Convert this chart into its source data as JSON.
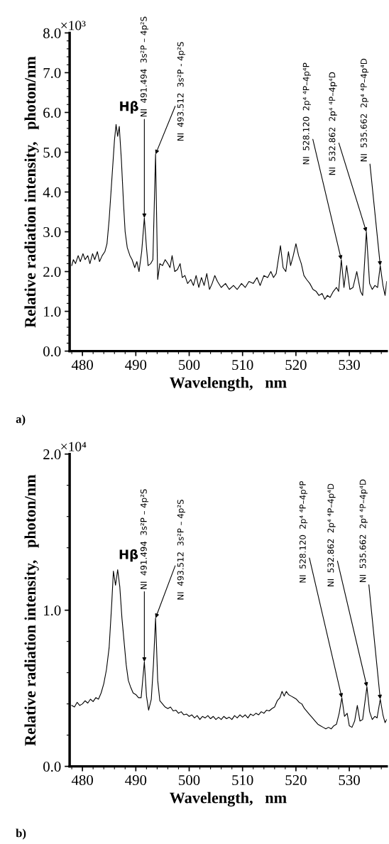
{
  "chart_data": [
    {
      "type": "line",
      "xlabel": "Wavelength,   nm",
      "ylabel": "Relative radiation intensity,   photon/nm",
      "xlim": [
        477.6,
        537
      ],
      "xticks": [
        480,
        490,
        500,
        510,
        520,
        530
      ],
      "ylim": [
        0,
        8
      ],
      "yticks": [
        {
          "value": 0,
          "label": "0.0"
        },
        {
          "value": 1,
          "label": "1.0"
        },
        {
          "value": 2,
          "label": "2.0"
        },
        {
          "value": 3,
          "label": "3.0"
        },
        {
          "value": 4,
          "label": "4.0"
        },
        {
          "value": 5,
          "label": "5.0"
        },
        {
          "value": 6,
          "label": "6.0"
        },
        {
          "value": 7,
          "label": "7.0"
        },
        {
          "value": 8,
          "label": "8.0"
        }
      ],
      "grid": false,
      "legend": false,
      "marker": "none",
      "line_style": "solid",
      "series": [
        {
          "color": "#000000",
          "x": [
            478,
            478.3,
            478.7,
            479.2,
            479.6,
            480.1,
            480.5,
            481,
            481.4,
            481.9,
            482.3,
            482.8,
            483.2,
            483.7,
            484.2,
            484.6,
            485,
            485.5,
            486,
            486.3,
            486.6,
            486.9,
            487.3,
            487.7,
            488,
            488.4,
            488.9,
            489.3,
            489.8,
            490.2,
            490.6,
            491.1,
            491.6,
            492,
            492.3,
            492.8,
            493.2,
            493.7,
            494.1,
            494.5,
            495,
            495.5,
            496,
            496.4,
            496.8,
            497.3,
            497.8,
            498.3,
            498.7,
            499.2,
            499.7,
            500.3,
            500.8,
            501.3,
            501.8,
            502.3,
            502.8,
            503.3,
            503.8,
            504.3,
            504.8,
            505.3,
            506,
            506.8,
            507.5,
            508.3,
            509,
            509.8,
            510.5,
            511.2,
            512,
            512.7,
            513.3,
            514,
            514.7,
            515.3,
            515.8,
            516.3,
            517.1,
            517.6,
            518.1,
            518.6,
            519,
            519.5,
            520,
            520.5,
            521,
            521.5,
            522,
            522.6,
            523.2,
            523.8,
            524.3,
            524.9,
            525.4,
            525.9,
            526.4,
            527,
            527.6,
            528,
            528.5,
            529,
            529.5,
            530.1,
            530.7,
            531.4,
            532.1,
            532.5,
            533.2,
            533.8,
            534.3,
            534.8,
            535.3,
            535.8,
            536.3,
            536.7,
            537
          ],
          "values": [
            2.15,
            2.3,
            2.2,
            2.4,
            2.25,
            2.45,
            2.3,
            2.4,
            2.2,
            2.45,
            2.3,
            2.5,
            2.25,
            2.4,
            2.5,
            2.7,
            3.3,
            4.3,
            5.3,
            5.7,
            5.4,
            5.65,
            4.8,
            3.7,
            3.0,
            2.6,
            2.4,
            2.3,
            2.1,
            2.25,
            2.0,
            2.5,
            3.35,
            2.6,
            2.15,
            2.2,
            2.3,
            4.95,
            1.8,
            2.2,
            2.15,
            2.3,
            2.2,
            2.1,
            2.4,
            2.0,
            2.05,
            2.2,
            1.85,
            1.9,
            1.7,
            1.8,
            1.65,
            1.9,
            1.6,
            1.85,
            1.65,
            1.95,
            1.55,
            1.7,
            1.9,
            1.75,
            1.6,
            1.7,
            1.55,
            1.65,
            1.55,
            1.7,
            1.6,
            1.75,
            1.7,
            1.85,
            1.65,
            1.9,
            1.85,
            2.0,
            1.85,
            1.95,
            2.65,
            2.1,
            2.0,
            2.5,
            2.15,
            2.4,
            2.7,
            2.4,
            2.2,
            1.9,
            1.8,
            1.7,
            1.55,
            1.5,
            1.4,
            1.45,
            1.3,
            1.4,
            1.35,
            1.5,
            1.6,
            1.5,
            2.3,
            1.6,
            2.15,
            1.55,
            1.6,
            2.0,
            1.5,
            1.4,
            3.0,
            1.7,
            1.55,
            1.65,
            1.6,
            2.15,
            1.65,
            1.4,
            1.75
          ]
        }
      ],
      "annotations": [
        "×10³",
        "a)",
        {
          "text": "Hβ",
          "x": 486.3,
          "y": 5.7
        },
        {
          "text": "NI  491.494  3s²P – 4p²S",
          "x": 491.6,
          "y": 3.35
        },
        {
          "text": "NI  493.512  3s²P - 4p²S",
          "x": 493.7,
          "y": 4.95
        },
        {
          "text": "NI  528.120  2p⁴ ⁴P–4p⁴P",
          "x": 528.5,
          "y": 2.3
        },
        {
          "text": "NI  532.862  2p⁴ ⁴P–4p⁴D",
          "x": 533.2,
          "y": 3.0
        },
        {
          "text": "NI  535.662  2p⁴ ⁴P–4p⁴D",
          "x": 535.8,
          "y": 2.15
        }
      ]
    },
    {
      "type": "line",
      "xlabel": "Wavelength,   nm",
      "ylabel": "Relative radiation intensity,   photon/nm",
      "xlim": [
        477.6,
        537
      ],
      "xticks": [
        480,
        490,
        500,
        510,
        520,
        530
      ],
      "ylim": [
        0,
        2
      ],
      "yticks": [
        {
          "value": 0,
          "label": "0.0"
        },
        {
          "value": 1,
          "label": "1.0"
        },
        {
          "value": 2,
          "label": "2.0"
        }
      ],
      "grid": false,
      "legend": false,
      "marker": "none",
      "line_style": "solid",
      "series": [
        {
          "color": "#000000",
          "x": [
            478,
            478.5,
            479,
            479.5,
            480,
            480.5,
            481,
            481.5,
            482,
            482.5,
            483,
            483.5,
            484,
            484.5,
            485,
            485.5,
            485.8,
            486.2,
            486.6,
            487,
            487.4,
            487.8,
            488.2,
            488.6,
            489,
            489.5,
            490,
            490.5,
            491,
            491.6,
            492,
            492.4,
            492.9,
            493.3,
            493.7,
            494.1,
            494.5,
            495,
            495.5,
            496,
            496.5,
            497,
            497.5,
            498,
            498.5,
            499,
            499.5,
            500,
            500.5,
            501,
            501.5,
            502,
            502.5,
            503,
            503.5,
            504,
            504.5,
            505,
            505.5,
            506,
            506.5,
            507,
            507.5,
            508,
            508.5,
            509,
            509.5,
            510,
            510.5,
            511,
            511.5,
            512,
            512.5,
            513,
            513.5,
            514,
            514.5,
            515,
            515.5,
            516,
            516.5,
            517,
            517.4,
            517.8,
            518.2,
            518.6,
            519.1,
            519.6,
            520.1,
            520.6,
            521.1,
            521.6,
            522.1,
            522.6,
            523.1,
            523.6,
            524.1,
            524.6,
            525.1,
            525.6,
            526.1,
            526.6,
            527.1,
            527.6,
            528.1,
            528.6,
            529.1,
            529.6,
            530,
            530.5,
            531,
            531.5,
            532,
            532.5,
            533.3,
            533.8,
            534.3,
            534.8,
            535.2,
            535.8,
            536.3,
            536.7,
            537
          ],
          "values": [
            0.39,
            0.38,
            0.41,
            0.39,
            0.4,
            0.42,
            0.405,
            0.43,
            0.415,
            0.44,
            0.43,
            0.47,
            0.53,
            0.62,
            0.76,
            1.05,
            1.25,
            1.16,
            1.26,
            1.15,
            0.95,
            0.8,
            0.65,
            0.55,
            0.51,
            0.47,
            0.46,
            0.44,
            0.44,
            0.67,
            0.45,
            0.36,
            0.43,
            0.65,
            0.95,
            0.55,
            0.42,
            0.4,
            0.38,
            0.37,
            0.38,
            0.355,
            0.36,
            0.34,
            0.35,
            0.33,
            0.335,
            0.32,
            0.33,
            0.31,
            0.325,
            0.3,
            0.32,
            0.31,
            0.325,
            0.305,
            0.32,
            0.3,
            0.315,
            0.3,
            0.32,
            0.305,
            0.315,
            0.3,
            0.325,
            0.31,
            0.33,
            0.315,
            0.33,
            0.31,
            0.335,
            0.325,
            0.34,
            0.33,
            0.35,
            0.34,
            0.36,
            0.355,
            0.37,
            0.38,
            0.42,
            0.44,
            0.48,
            0.45,
            0.48,
            0.46,
            0.45,
            0.44,
            0.43,
            0.41,
            0.4,
            0.37,
            0.35,
            0.33,
            0.31,
            0.29,
            0.27,
            0.26,
            0.25,
            0.24,
            0.25,
            0.24,
            0.26,
            0.27,
            0.34,
            0.44,
            0.32,
            0.34,
            0.26,
            0.25,
            0.29,
            0.39,
            0.29,
            0.3,
            0.51,
            0.35,
            0.3,
            0.32,
            0.31,
            0.43,
            0.33,
            0.28,
            0.3
          ]
        }
      ],
      "annotations": [
        "×10⁴",
        "b)",
        {
          "text": "Hβ",
          "x": 486.6,
          "y": 1.26
        },
        {
          "text": "NI  491.494  3s²P – 4p²S",
          "x": 491.6,
          "y": 0.67
        },
        {
          "text": "NI  493.512  3s²P – 4p²S",
          "x": 493.7,
          "y": 0.95
        },
        {
          "text": "NI  528.120  2p⁴ ⁴P–4p⁴P",
          "x": 528.6,
          "y": 0.44
        },
        {
          "text": "NI  532.862  2p⁴ ⁴P–4p⁴D",
          "x": 533.3,
          "y": 0.51
        },
        {
          "text": "NI  535.662  2p⁴ ⁴P–4p⁴D",
          "x": 535.8,
          "y": 0.43
        }
      ]
    }
  ]
}
